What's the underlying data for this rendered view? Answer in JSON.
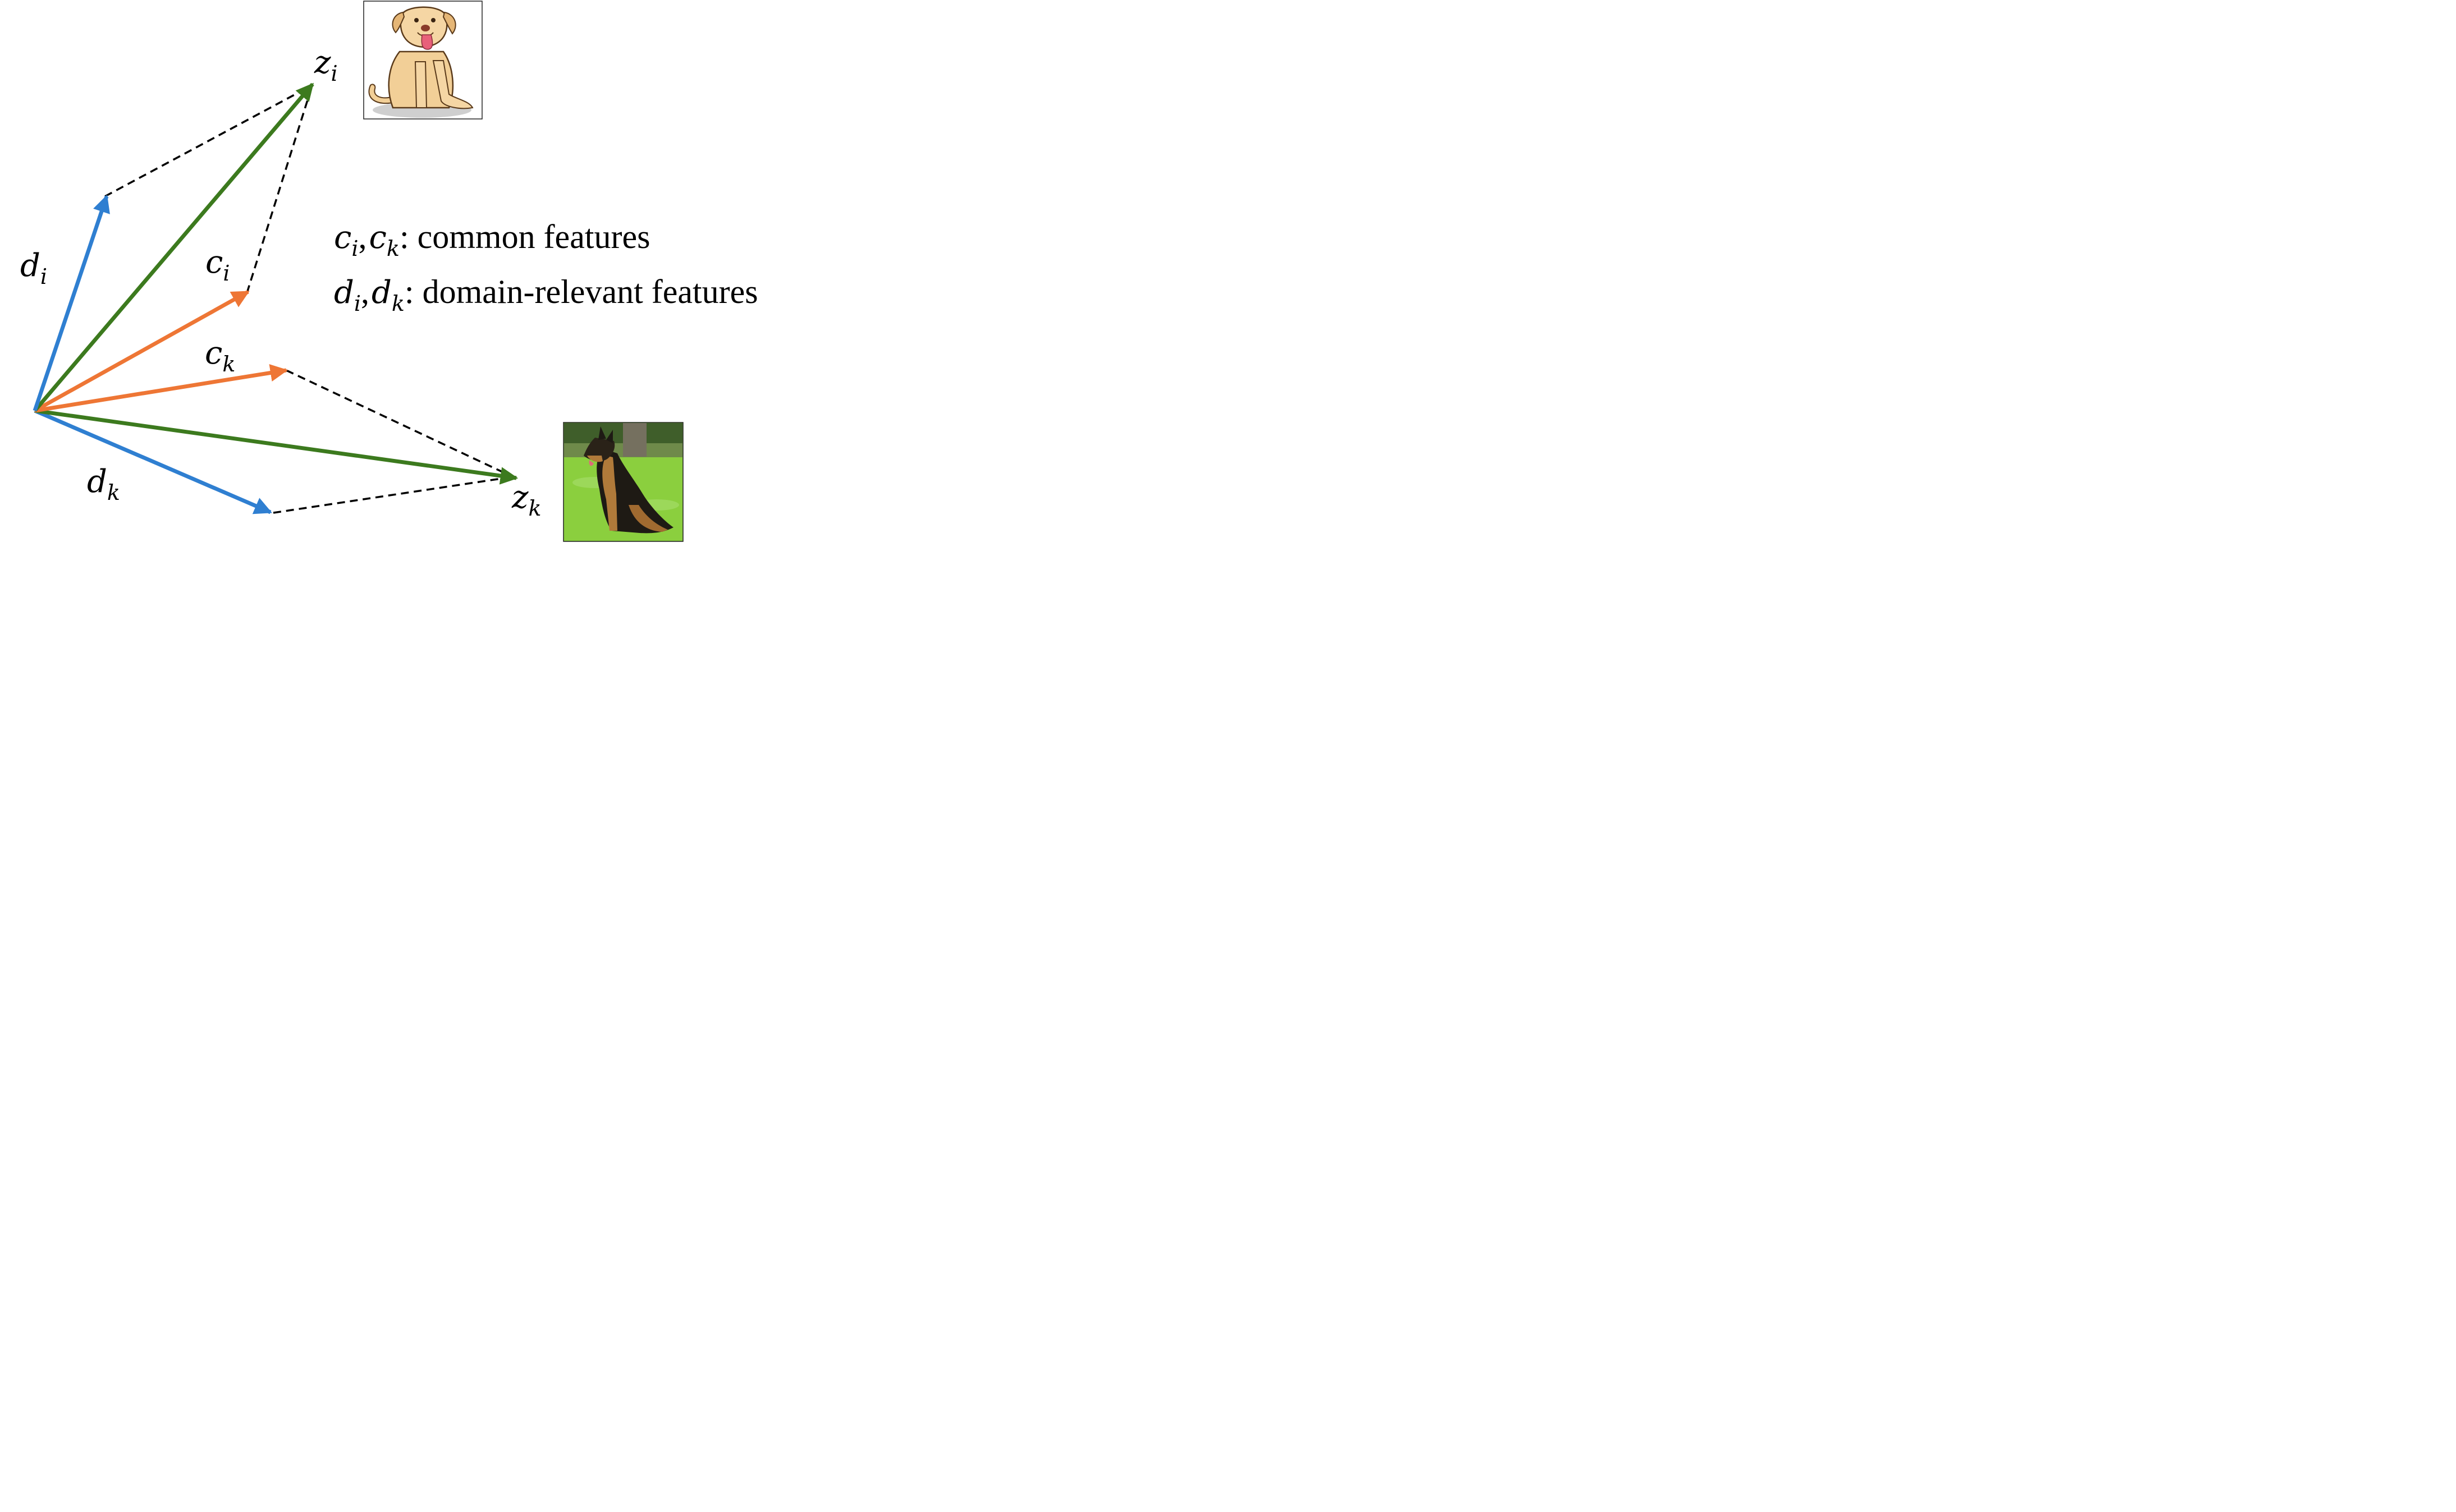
{
  "colors": {
    "d_vector": "#2f7fd1",
    "z_vector": "#3c7a1e",
    "c_vector": "#ee7635",
    "dashed": "#000000",
    "background": "#ffffff"
  },
  "labels": {
    "z_i": {
      "base": "z",
      "sub": "i"
    },
    "z_k": {
      "base": "z",
      "sub": "k"
    },
    "d_i": {
      "base": "d",
      "sub": "i"
    },
    "d_k": {
      "base": "d",
      "sub": "k"
    },
    "c_i": {
      "base": "c",
      "sub": "i"
    },
    "c_k": {
      "base": "c",
      "sub": "k"
    }
  },
  "legend": {
    "line1": {
      "v1": "c",
      "s1": "i",
      "sep": ",",
      "v2": "c",
      "s2": "k",
      "text": ": common features"
    },
    "line2": {
      "v1": "d",
      "s1": "i",
      "sep": ",",
      "v2": "d",
      "s2": "k",
      "text": ": domain-relevant features"
    }
  },
  "images": {
    "top": "cartoon-dog-sitting",
    "bottom": "german-shepherd-photo"
  }
}
